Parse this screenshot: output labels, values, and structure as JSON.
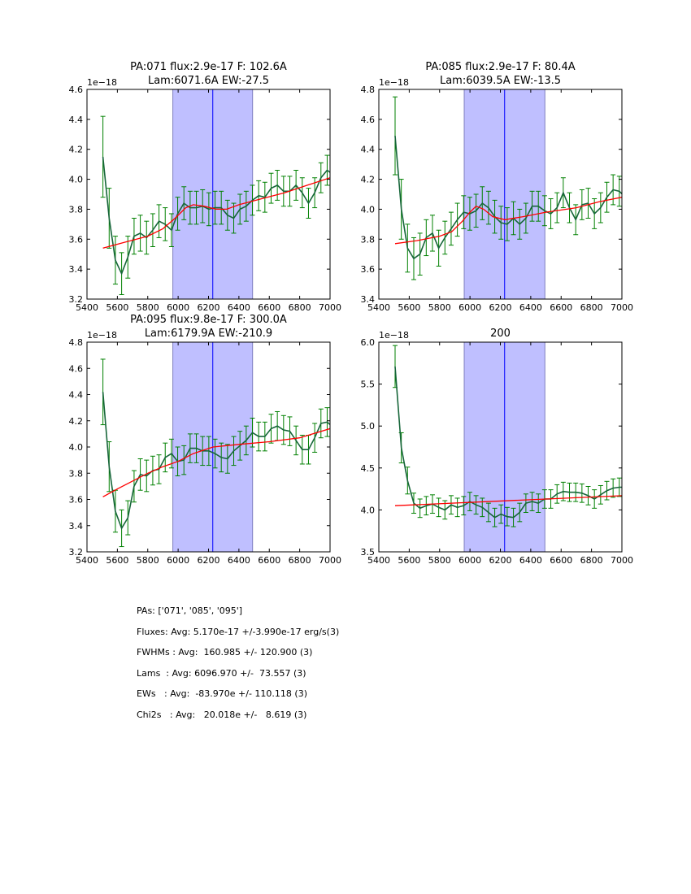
{
  "colors": {
    "span": "#bfbfff",
    "span_edge": "#7f7fbf",
    "center_line": "#0000ff",
    "data_line": "#17663a",
    "errorbar": "#008000",
    "fit": "#ff0000"
  },
  "summary": [
    "PAs: ['071', '085', '095']",
    "Fluxes: Avg: 5.170e-17 +/-3.990e-17 erg/s(3)",
    "FWHMs : Avg:  160.985 +/- 120.900 (3)",
    "Lams  : Avg: 6096.970 +/-  73.557 (3)",
    "EWs   : Avg:  -83.970e +/- 110.118 (3)",
    "Chi2s   : Avg:   20.018e +/-   8.619 (3)"
  ],
  "chart_data": [
    {
      "type": "line",
      "title": [
        "PA:071 flux:2.9e-17 F: 102.6A",
        "Lam:6071.6A EW:-27.5"
      ],
      "offset_label": "1e−18",
      "xlim": [
        5400,
        7000
      ],
      "ylim": [
        3.2,
        4.6
      ],
      "xticks": [
        "5400",
        "5600",
        "5800",
        "6000",
        "6200",
        "6400",
        "6600",
        "6800",
        "7000"
      ],
      "yticks": [
        "3.2",
        "3.4",
        "3.6",
        "3.8",
        "4.0",
        "4.2",
        "4.4",
        "4.6"
      ],
      "span": [
        5965,
        6490
      ],
      "center": 6228,
      "x_start": 5505,
      "x_step": 41,
      "values": [
        4.15,
        3.74,
        3.46,
        3.37,
        3.48,
        3.62,
        3.64,
        3.61,
        3.66,
        3.72,
        3.7,
        3.66,
        3.77,
        3.84,
        3.81,
        3.81,
        3.82,
        3.8,
        3.81,
        3.81,
        3.76,
        3.74,
        3.8,
        3.82,
        3.86,
        3.89,
        3.88,
        3.94,
        3.96,
        3.92,
        3.92,
        3.96,
        3.91,
        3.84,
        3.91,
        4.01,
        4.06,
        4.03
      ],
      "errors": [
        0.27,
        0.2,
        0.16,
        0.14,
        0.14,
        0.12,
        0.12,
        0.11,
        0.11,
        0.11,
        0.11,
        0.11,
        0.11,
        0.11,
        0.11,
        0.11,
        0.11,
        0.11,
        0.11,
        0.11,
        0.1,
        0.1,
        0.1,
        0.1,
        0.1,
        0.1,
        0.1,
        0.1,
        0.1,
        0.1,
        0.1,
        0.1,
        0.1,
        0.1,
        0.1,
        0.1,
        0.1,
        0.1
      ],
      "fit": {
        "x": [
          5505,
          5650,
          5800,
          5900,
          5980,
          6050,
          6100,
          6170,
          6250,
          6320,
          6400,
          6550,
          6700,
          6850,
          7000
        ],
        "y": [
          3.54,
          3.58,
          3.62,
          3.67,
          3.74,
          3.81,
          3.83,
          3.82,
          3.8,
          3.8,
          3.83,
          3.87,
          3.91,
          3.96,
          4.01
        ]
      }
    },
    {
      "type": "line",
      "title": [
        "PA:085 flux:2.9e-17 F: 80.4A",
        "Lam:6039.5A EW:-13.5"
      ],
      "offset_label": "1e−18",
      "xlim": [
        5400,
        7000
      ],
      "ylim": [
        3.4,
        4.8
      ],
      "xticks": [
        "5400",
        "5600",
        "5800",
        "6000",
        "6200",
        "6400",
        "6600",
        "6800",
        "7000"
      ],
      "yticks": [
        "3.4",
        "3.6",
        "3.8",
        "4.0",
        "4.2",
        "4.4",
        "4.6",
        "4.8"
      ],
      "span": [
        5962,
        6493
      ],
      "center": 6228,
      "x_start": 5507,
      "x_step": 41,
      "values": [
        4.49,
        4.0,
        3.74,
        3.67,
        3.7,
        3.81,
        3.84,
        3.74,
        3.81,
        3.87,
        3.93,
        3.98,
        3.97,
        3.99,
        4.04,
        4.01,
        3.95,
        3.91,
        3.9,
        3.94,
        3.9,
        3.94,
        4.02,
        4.02,
        3.99,
        3.97,
        4.01,
        4.11,
        4.01,
        3.93,
        4.03,
        4.04,
        3.97,
        4.01,
        4.08,
        4.13,
        4.12,
        4.08
      ],
      "errors": [
        0.26,
        0.2,
        0.16,
        0.14,
        0.14,
        0.12,
        0.12,
        0.12,
        0.11,
        0.11,
        0.11,
        0.11,
        0.11,
        0.11,
        0.11,
        0.11,
        0.11,
        0.11,
        0.11,
        0.11,
        0.1,
        0.1,
        0.1,
        0.1,
        0.1,
        0.1,
        0.1,
        0.1,
        0.1,
        0.1,
        0.1,
        0.1,
        0.1,
        0.1,
        0.1,
        0.1,
        0.1,
        0.1
      ],
      "fit": {
        "x": [
          5507,
          5650,
          5800,
          5880,
          5950,
          6000,
          6040,
          6090,
          6150,
          6230,
          6350,
          6500,
          6700,
          6850,
          7000
        ],
        "y": [
          3.77,
          3.79,
          3.82,
          3.85,
          3.92,
          3.98,
          4.02,
          4.0,
          3.95,
          3.93,
          3.95,
          3.98,
          4.01,
          4.05,
          4.08
        ]
      }
    },
    {
      "type": "line",
      "title": [
        "PA:095 flux:9.8e-17 F: 300.0A",
        "Lam:6179.9A EW:-210.9"
      ],
      "offset_label": "1e−18",
      "xlim": [
        5400,
        7000
      ],
      "ylim": [
        3.2,
        4.8
      ],
      "xticks": [
        "5400",
        "5600",
        "5800",
        "6000",
        "6200",
        "6400",
        "6600",
        "6800",
        "7000"
      ],
      "yticks": [
        "3.2",
        "3.4",
        "3.6",
        "3.8",
        "4.0",
        "4.2",
        "4.4",
        "4.6",
        "4.8"
      ],
      "span": [
        5965,
        6490
      ],
      "center": 6228,
      "x_start": 5505,
      "x_step": 41,
      "values": [
        4.42,
        3.85,
        3.51,
        3.38,
        3.46,
        3.7,
        3.79,
        3.78,
        3.82,
        3.83,
        3.92,
        3.95,
        3.89,
        3.9,
        3.99,
        3.99,
        3.97,
        3.97,
        3.95,
        3.92,
        3.91,
        3.97,
        4.01,
        4.05,
        4.11,
        4.08,
        4.08,
        4.14,
        4.16,
        4.13,
        4.12,
        4.05,
        3.98,
        3.98,
        4.07,
        4.18,
        4.19,
        4.15
      ],
      "errors": [
        0.25,
        0.19,
        0.16,
        0.14,
        0.13,
        0.12,
        0.12,
        0.12,
        0.11,
        0.11,
        0.11,
        0.11,
        0.11,
        0.11,
        0.11,
        0.11,
        0.11,
        0.11,
        0.11,
        0.11,
        0.11,
        0.11,
        0.11,
        0.11,
        0.11,
        0.11,
        0.11,
        0.11,
        0.11,
        0.11,
        0.11,
        0.11,
        0.11,
        0.11,
        0.11,
        0.11,
        0.11,
        0.11
      ],
      "fit": {
        "x": [
          5505,
          5600,
          5700,
          5800,
          5900,
          6000,
          6100,
          6230,
          6400,
          6600,
          6800,
          7000
        ],
        "y": [
          3.62,
          3.68,
          3.74,
          3.8,
          3.85,
          3.89,
          3.95,
          4.0,
          4.02,
          4.04,
          4.07,
          4.14
        ]
      }
    },
    {
      "type": "line",
      "title": [
        "200"
      ],
      "offset_label": "1e−18",
      "xlim": [
        5400,
        7000
      ],
      "ylim": [
        3.5,
        6.0
      ],
      "xticks": [
        "5400",
        "5600",
        "5800",
        "6000",
        "6200",
        "6400",
        "6600",
        "6800",
        "7000"
      ],
      "yticks": [
        "3.5",
        "4.0",
        "4.5",
        "5.0",
        "5.5",
        "6.0"
      ],
      "span": [
        5962,
        6493
      ],
      "center": 6228,
      "x_start": 5507,
      "x_step": 41,
      "values": [
        5.71,
        4.74,
        4.35,
        4.08,
        4.02,
        4.05,
        4.07,
        4.03,
        4.0,
        4.06,
        4.03,
        4.05,
        4.1,
        4.06,
        4.03,
        3.97,
        3.91,
        3.95,
        3.92,
        3.91,
        3.97,
        4.08,
        4.1,
        4.08,
        4.13,
        4.13,
        4.19,
        4.22,
        4.21,
        4.21,
        4.2,
        4.17,
        4.13,
        4.18,
        4.23,
        4.26,
        4.27,
        4.27
      ],
      "errors": [
        0.25,
        0.18,
        0.16,
        0.12,
        0.11,
        0.11,
        0.11,
        0.11,
        0.11,
        0.11,
        0.11,
        0.11,
        0.11,
        0.11,
        0.11,
        0.11,
        0.11,
        0.11,
        0.11,
        0.11,
        0.11,
        0.11,
        0.11,
        0.11,
        0.11,
        0.11,
        0.11,
        0.11,
        0.11,
        0.11,
        0.11,
        0.11,
        0.11,
        0.11,
        0.11,
        0.11,
        0.11,
        0.11
      ],
      "fit": {
        "x": [
          5507,
          7000
        ],
        "y": [
          4.05,
          4.17
        ]
      }
    }
  ]
}
